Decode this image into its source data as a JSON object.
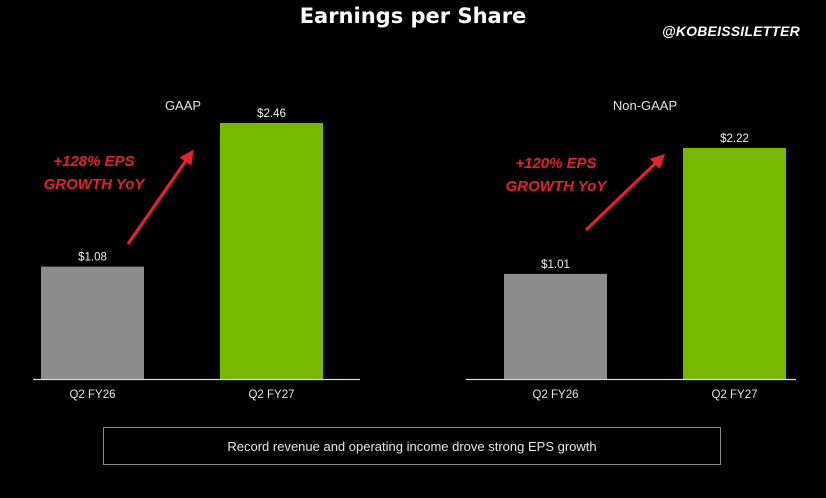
{
  "title": "Earnings per Share",
  "handle": "@KOBEISSILETTER",
  "footer": "Record revenue and operating income drove strong EPS growth",
  "colors": {
    "prior": "#8c8c8c",
    "current": "#76b900",
    "annotation": "#e8202a",
    "background": "#000000"
  },
  "chart_data": [
    {
      "type": "bar",
      "title": "GAAP",
      "categories": [
        "Q2 FY26",
        "Q2 FY27"
      ],
      "values": [
        1.08,
        2.46
      ],
      "value_labels": [
        "$1.08",
        "$2.46"
      ],
      "annotation": [
        "+128% EPS",
        "GROWTH YoY"
      ],
      "ylim": [
        0,
        2.46
      ],
      "grid": false
    },
    {
      "type": "bar",
      "title": "Non-GAAP",
      "categories": [
        "Q2 FY26",
        "Q2 FY27"
      ],
      "values": [
        1.01,
        2.22
      ],
      "value_labels": [
        "$1.01",
        "$2.22"
      ],
      "annotation": [
        "+120% EPS",
        "GROWTH YoY"
      ],
      "ylim": [
        0,
        2.46
      ],
      "grid": false
    }
  ]
}
